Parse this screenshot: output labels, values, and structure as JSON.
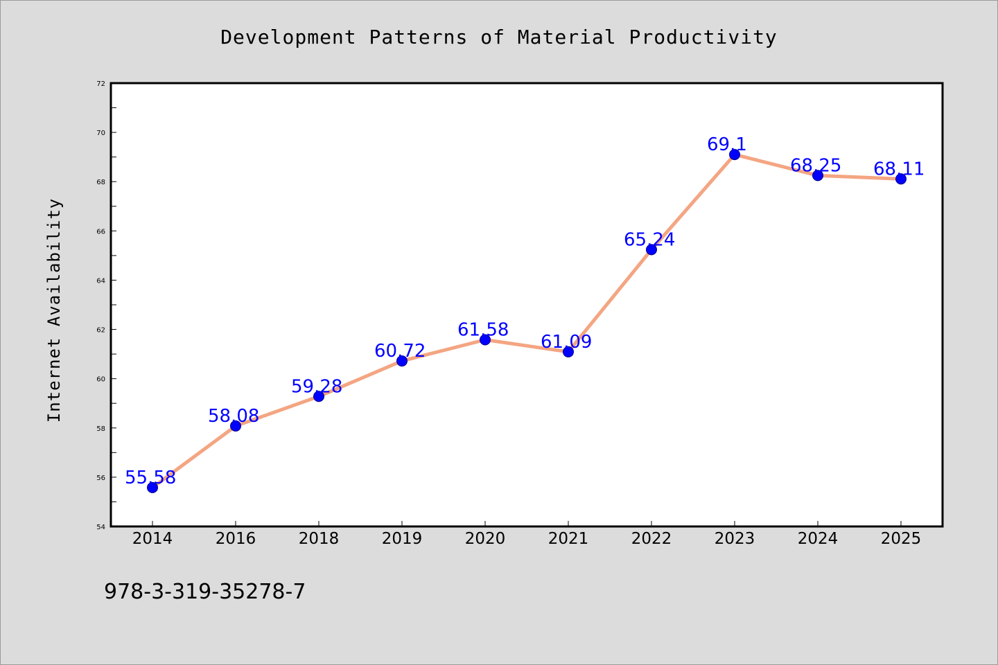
{
  "chart_data": {
    "type": "line",
    "title": "Development Patterns of Material Productivity",
    "xlabel": "",
    "ylabel": "Internet Availability",
    "categories": [
      "2014",
      "2016",
      "2018",
      "2019",
      "2020",
      "2021",
      "2022",
      "2023",
      "2024",
      "2025"
    ],
    "series": [
      {
        "values": [
          55.58,
          58.08,
          59.28,
          60.72,
          61.58,
          61.09,
          65.24,
          69.1,
          68.25,
          68.11
        ],
        "data_labels": [
          "55.58",
          "58.08",
          "59.28",
          "60.72",
          "61.58",
          "61.09",
          "65.24",
          "69.1",
          "68.25",
          "68.11"
        ],
        "line_color": "#f4a582",
        "marker_color": "#0000ff"
      }
    ],
    "ylim": [
      54,
      72
    ],
    "yticks": [
      "54",
      "56",
      "58",
      "60",
      "62",
      "64",
      "66",
      "68",
      "70",
      "72"
    ],
    "grid": false,
    "legend": "none",
    "label_color": "#0000ff"
  },
  "footer": {
    "identifier": "978-3-319-35278-7"
  }
}
